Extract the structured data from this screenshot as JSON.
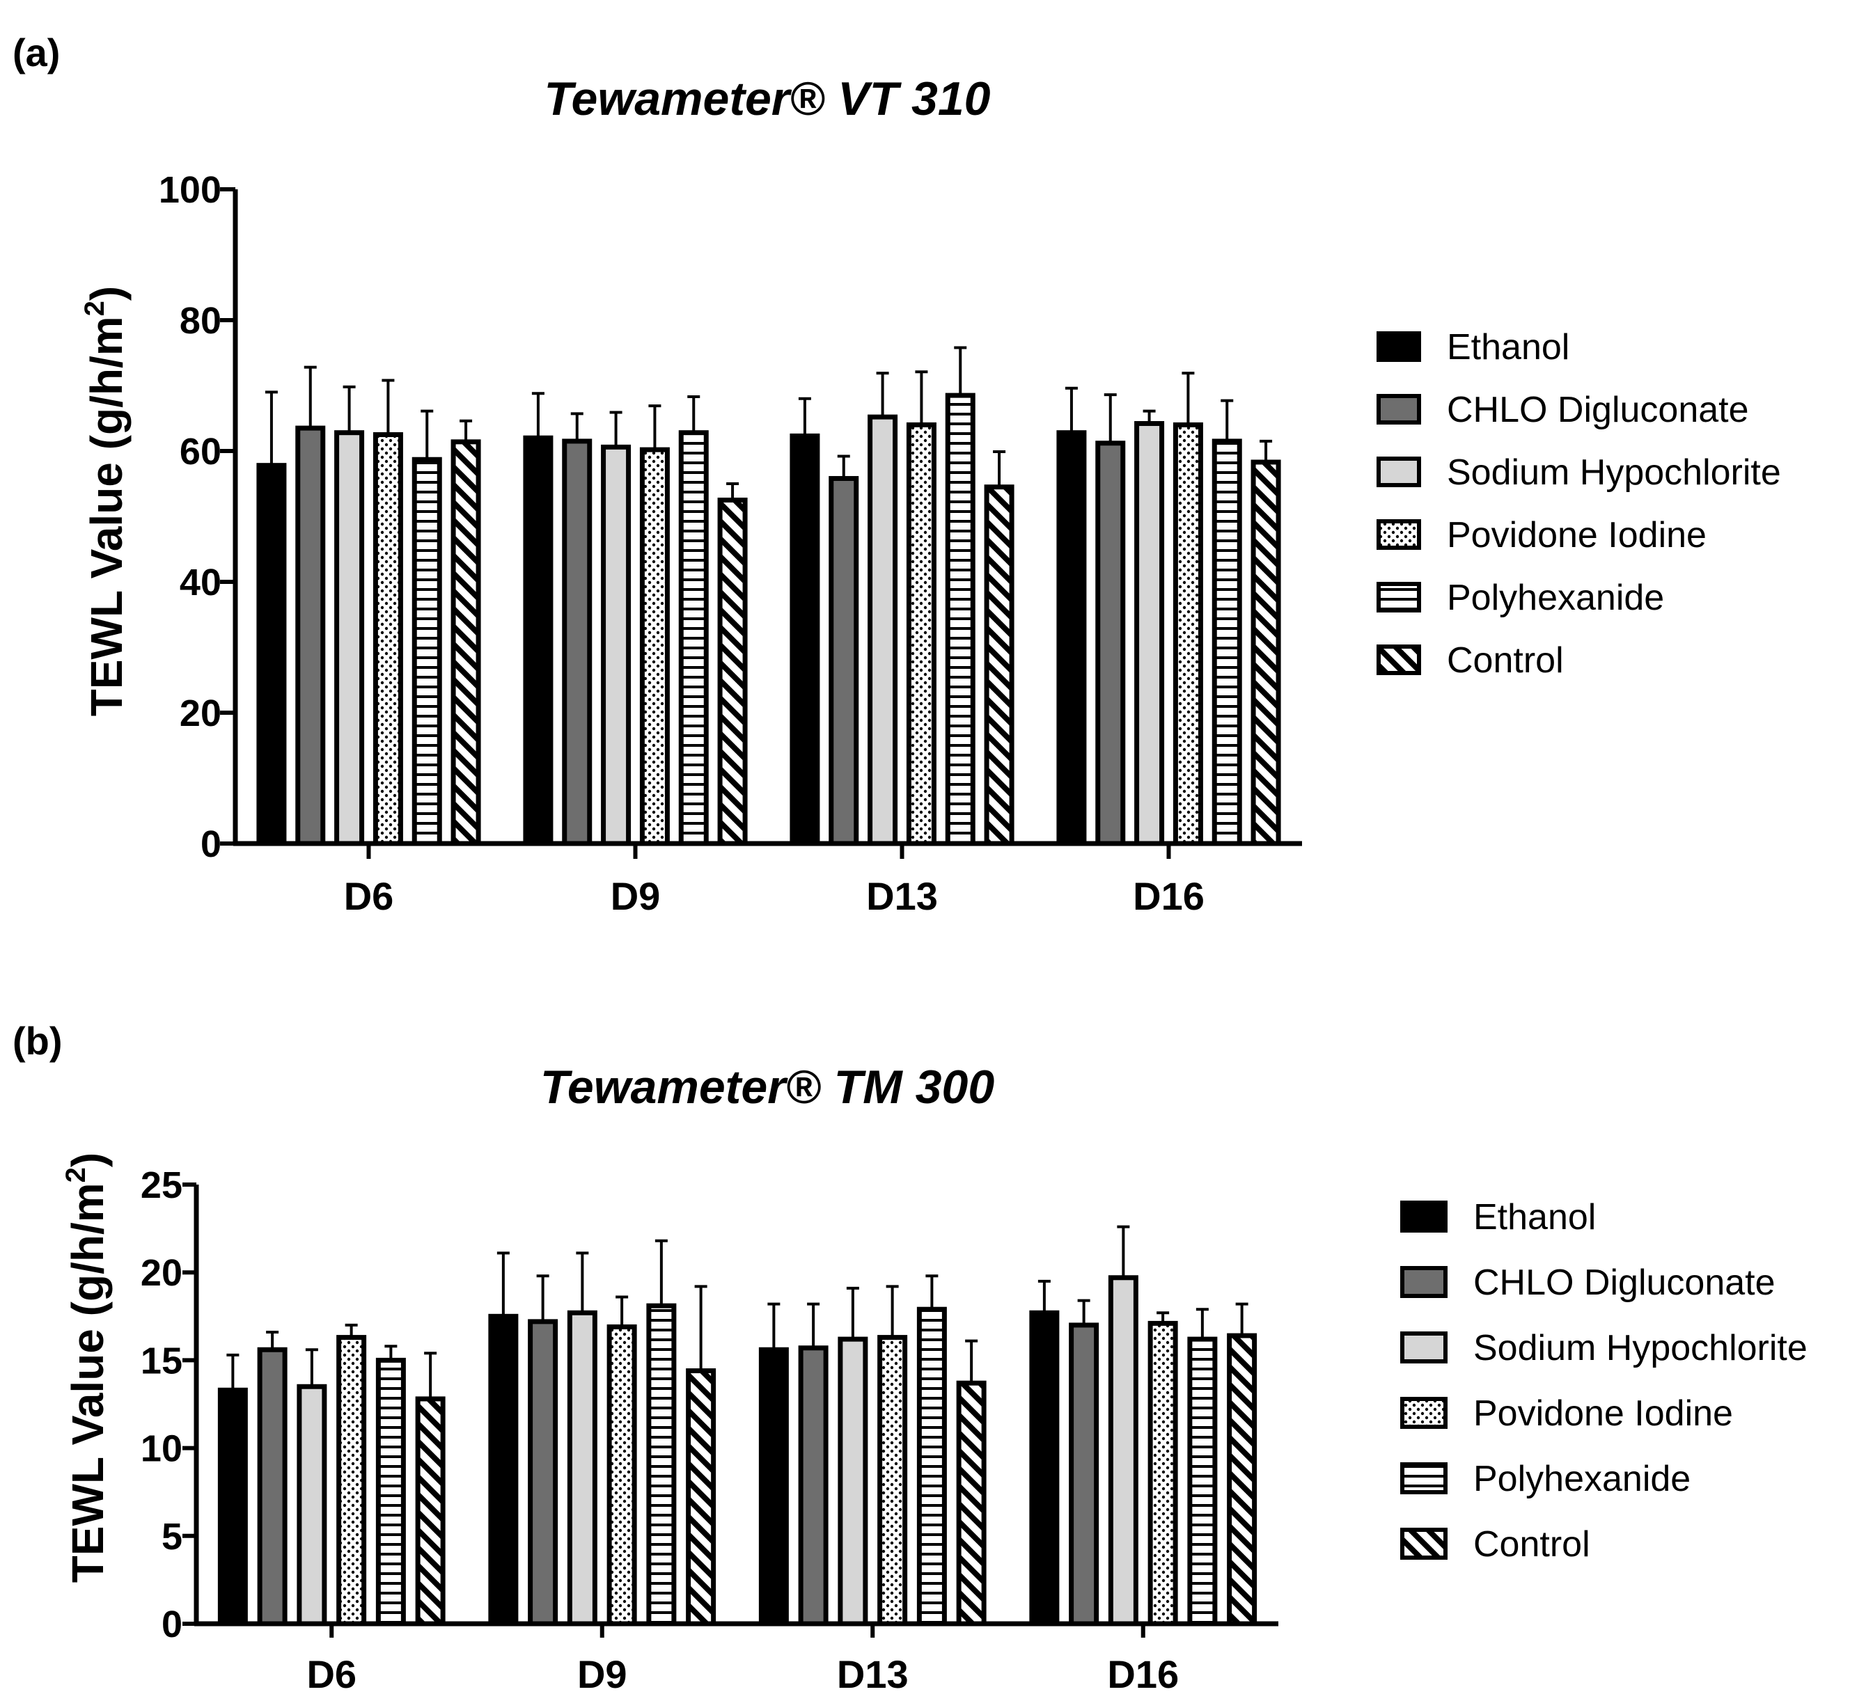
{
  "styles": [
    {
      "fill": "#000000",
      "pattern": "solid"
    },
    {
      "fill": "#6e6e6e",
      "pattern": "solid"
    },
    {
      "fill": "#d6d6d6",
      "pattern": "solid"
    },
    {
      "fill": "#ffffff",
      "pattern": "dots"
    },
    {
      "fill": "#ffffff",
      "pattern": "hstripes"
    },
    {
      "fill": "#ffffff",
      "pattern": "diagonal"
    }
  ],
  "chart_data": [
    {
      "type": "bar",
      "panel_label": "(a)",
      "title": "Tewameter® VT 310",
      "ylabel": "TEWL Value (g/h/m",
      "ylabel_sup": "2",
      "ylabel_close": ")",
      "xlabel": "",
      "categories": [
        "D6",
        "D9",
        "D13",
        "D16"
      ],
      "ylim": [
        0,
        100
      ],
      "yticks": [
        0,
        20,
        40,
        60,
        80,
        100
      ],
      "legend_position": "right",
      "series": [
        {
          "name": "Ethanol",
          "values": [
            57.8,
            62.0,
            62.3,
            62.8
          ],
          "errors": [
            11.2,
            6.8,
            5.7,
            6.8
          ]
        },
        {
          "name": "CHLO Digluconate",
          "values": [
            63.5,
            61.5,
            55.8,
            61.2
          ],
          "errors": [
            9.3,
            4.2,
            3.4,
            7.4
          ]
        },
        {
          "name": "Sodium Hypochlorite",
          "values": [
            62.8,
            60.6,
            65.2,
            64.2
          ],
          "errors": [
            7.0,
            5.3,
            6.7,
            1.9
          ]
        },
        {
          "name": "Povidone Iodine",
          "values": [
            62.5,
            60.2,
            64.0,
            64.0
          ],
          "errors": [
            8.3,
            6.7,
            8.1,
            7.9
          ]
        },
        {
          "name": "Polyhexanide",
          "values": [
            58.7,
            62.8,
            68.5,
            61.5
          ],
          "errors": [
            7.4,
            5.5,
            7.3,
            6.2
          ]
        },
        {
          "name": "Control",
          "values": [
            61.4,
            52.5,
            54.5,
            58.3
          ],
          "errors": [
            3.2,
            2.5,
            5.4,
            3.2
          ]
        }
      ]
    },
    {
      "type": "bar",
      "panel_label": "(b)",
      "title": "Tewameter® TM 300",
      "ylabel": "TEWL Value (g/h/m",
      "ylabel_sup": "2",
      "ylabel_close": ")",
      "xlabel": "",
      "categories": [
        "D6",
        "D9",
        "D13",
        "D16"
      ],
      "ylim": [
        0,
        25
      ],
      "yticks": [
        0,
        5,
        10,
        15,
        20,
        25
      ],
      "legend_position": "right",
      "series": [
        {
          "name": "Ethanol",
          "values": [
            13.3,
            17.5,
            15.6,
            17.7
          ],
          "errors": [
            2.0,
            3.6,
            2.6,
            1.8
          ]
        },
        {
          "name": "CHLO Digluconate",
          "values": [
            15.6,
            17.2,
            15.7,
            17.0
          ],
          "errors": [
            1.0,
            2.6,
            2.5,
            1.4
          ]
        },
        {
          "name": "Sodium Hypochlorite",
          "values": [
            13.5,
            17.7,
            16.2,
            19.7
          ],
          "errors": [
            2.1,
            3.4,
            2.9,
            2.9
          ]
        },
        {
          "name": "Povidone Iodine",
          "values": [
            16.3,
            16.9,
            16.3,
            17.1
          ],
          "errors": [
            0.7,
            1.7,
            2.9,
            0.6
          ]
        },
        {
          "name": "Polyhexanide",
          "values": [
            15.0,
            18.1,
            17.9,
            16.2
          ],
          "errors": [
            0.8,
            3.7,
            1.9,
            1.7
          ]
        },
        {
          "name": "Control",
          "values": [
            12.8,
            14.4,
            13.7,
            16.4
          ],
          "errors": [
            2.6,
            4.8,
            2.4,
            1.8
          ]
        }
      ]
    }
  ]
}
